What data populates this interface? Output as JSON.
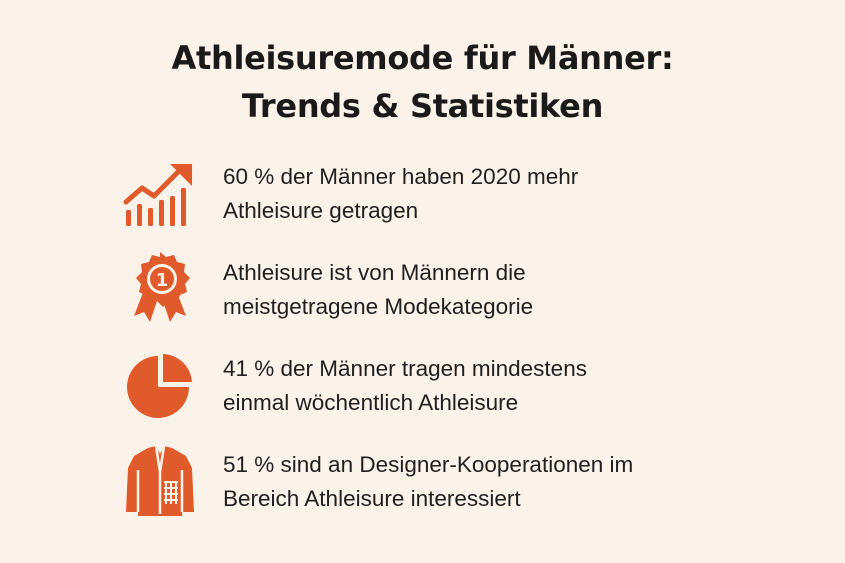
{
  "title": {
    "line1": "Athleisuremode für Männer:",
    "line2": "Trends & Statistiken"
  },
  "accent_color": "#e05a2b",
  "items": [
    {
      "icon": "trending-up-bar-chart-icon",
      "line1": "60 % der Männer haben 2020 mehr",
      "line2": "Athleisure getragen"
    },
    {
      "icon": "award-medal-icon",
      "medal_number": "1",
      "line1": "Athleisure ist von Männern die",
      "line2": "meistgetragene Modekategorie"
    },
    {
      "icon": "pie-chart-icon",
      "line1": "41 % der Männer tragen mindestens",
      "line2": "einmal wöchentlich Athleisure"
    },
    {
      "icon": "jacket-icon",
      "line1": "51 % sind an Designer-Kooperationen im",
      "line2": "Bereich Athleisure interessiert"
    }
  ]
}
